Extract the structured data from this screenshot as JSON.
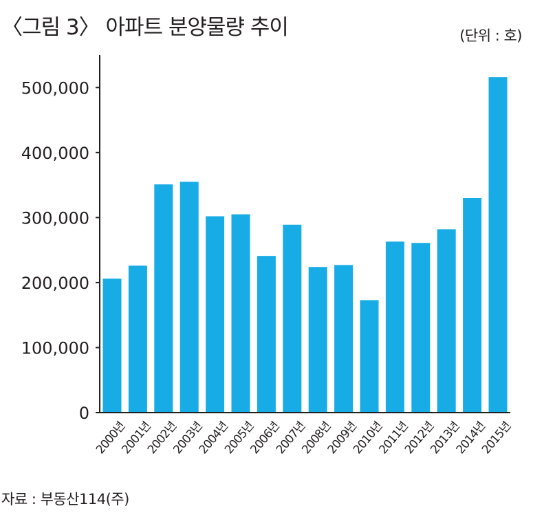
{
  "title": "〈그림 3〉 아파트 분양물량 추이",
  "unit_label": "(단위 : 호)",
  "source": "자료 : 부동산114(주)",
  "chart_data": {
    "type": "bar",
    "categories": [
      "2000년",
      "2001년",
      "2002년",
      "2003년",
      "2004년",
      "2005년",
      "2006년",
      "2007년",
      "2008년",
      "2009년",
      "2010년",
      "2011년",
      "2012년",
      "2013년",
      "2014년",
      "2015년"
    ],
    "values": [
      206000,
      226000,
      351000,
      355000,
      302000,
      305000,
      241000,
      289000,
      224000,
      227000,
      173000,
      263000,
      261000,
      282000,
      330000,
      516000
    ],
    "ylim": [
      0,
      550000
    ],
    "yticks": [
      0,
      100000,
      200000,
      300000,
      400000,
      500000
    ],
    "ytick_labels": [
      "0",
      "100,000",
      "200,000",
      "300,000",
      "400,000",
      "500,000"
    ],
    "bar_color": "#18ace6",
    "grid": false
  }
}
